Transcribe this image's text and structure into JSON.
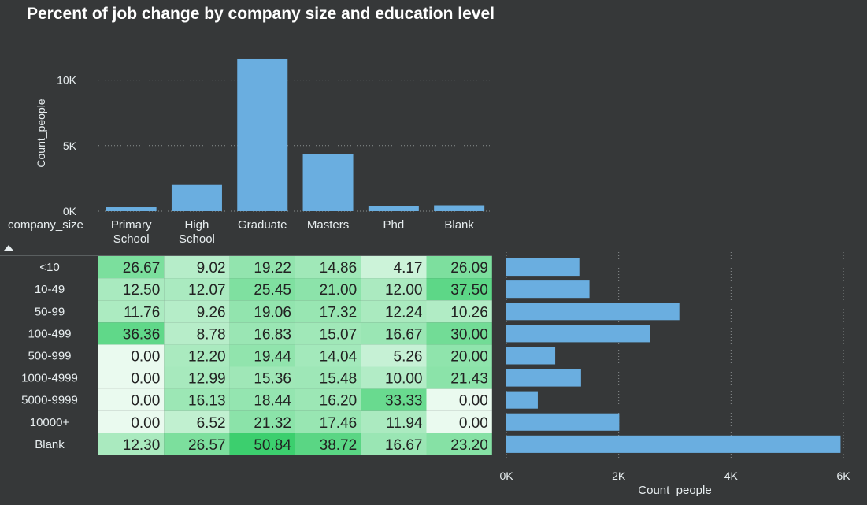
{
  "title": "Percent of job change by company size and education level",
  "row_header": "company_size",
  "colors": {
    "background": "#363839",
    "bar": "#6aaee0",
    "heat_low": "#eafaef",
    "heat_high": "#3ccf6e",
    "text_light": "#e8eef0",
    "text_dark": "#222222"
  },
  "chart_data": [
    {
      "type": "bar",
      "categories": [
        "Primary School",
        "High School",
        "Graduate",
        "Masters",
        "Phd",
        "Blank"
      ],
      "category_lines": [
        [
          "Primary",
          "School"
        ],
        [
          "High",
          "School"
        ],
        [
          "Graduate"
        ],
        [
          "Masters"
        ],
        [
          "Phd"
        ],
        [
          "Blank"
        ]
      ],
      "values": [
        300,
        2000,
        11600,
        4350,
        400,
        450
      ],
      "ylabel": "Count_people",
      "ylim": [
        0,
        12500
      ],
      "yticks": [
        0,
        5000,
        10000
      ],
      "ytick_labels": [
        "0K",
        "5K",
        "10K"
      ],
      "grid": true
    },
    {
      "type": "heatmap",
      "rows": [
        "<10",
        "10-49",
        "50-99",
        "100-499",
        "500-999",
        "1000-4999",
        "5000-9999",
        "10000+",
        "Blank"
      ],
      "columns": [
        "Primary School",
        "High School",
        "Graduate",
        "Masters",
        "Phd",
        "Blank"
      ],
      "values": [
        [
          26.67,
          9.02,
          19.22,
          14.86,
          4.17,
          26.09
        ],
        [
          12.5,
          12.07,
          25.45,
          21.0,
          12.0,
          37.5
        ],
        [
          11.76,
          9.26,
          19.06,
          17.32,
          12.24,
          10.26
        ],
        [
          36.36,
          8.78,
          16.83,
          15.07,
          16.67,
          30.0
        ],
        [
          0.0,
          12.2,
          19.44,
          14.04,
          5.26,
          20.0
        ],
        [
          0.0,
          12.99,
          15.36,
          15.48,
          10.0,
          21.43
        ],
        [
          0.0,
          16.13,
          18.44,
          16.2,
          33.33,
          0.0
        ],
        [
          0.0,
          6.52,
          21.32,
          17.46,
          11.94,
          0.0
        ],
        [
          12.3,
          26.57,
          50.84,
          38.72,
          16.67,
          23.2
        ]
      ]
    },
    {
      "type": "bar",
      "orientation": "horizontal",
      "categories": [
        "<10",
        "10-49",
        "50-99",
        "100-499",
        "500-999",
        "1000-4999",
        "5000-9999",
        "10000+",
        "Blank"
      ],
      "values": [
        1300,
        1480,
        3080,
        2560,
        870,
        1330,
        560,
        2010,
        5950
      ],
      "xlabel": "Count_people",
      "xlim": [
        0,
        6000
      ],
      "xticks": [
        0,
        2000,
        4000,
        6000
      ],
      "xtick_labels": [
        "0K",
        "2K",
        "4K",
        "6K"
      ],
      "grid": true
    }
  ]
}
